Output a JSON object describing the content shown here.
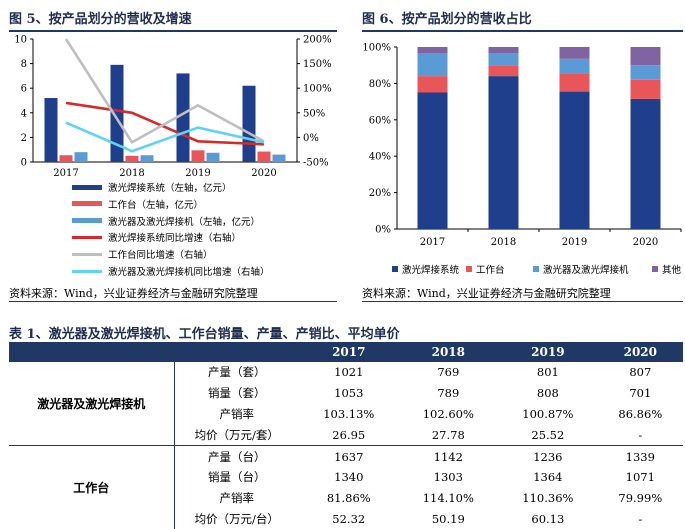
{
  "fig5": {
    "title": "图 5、按产品划分的营收及增速",
    "source": "资料来源：Wind，兴业证券经济与金融研究院整理",
    "legend": [
      {
        "label": "激光焊接系统（左轴，亿元）",
        "kind": "bar",
        "color": "#1f3e8c"
      },
      {
        "label": "工作台（左轴，亿元）",
        "kind": "bar",
        "color": "#e8565a"
      },
      {
        "label": "激光器及激光焊接机（左轴，亿元）",
        "kind": "bar",
        "color": "#5b9bd5"
      },
      {
        "label": "激光焊接系统同比增速（右轴）",
        "kind": "line",
        "color": "#d62a2a"
      },
      {
        "label": "工作台同比增速（右轴）",
        "kind": "line",
        "color": "#bfbfbf"
      },
      {
        "label": "激光器及激光焊接机同比增速（右轴）",
        "kind": "line",
        "color": "#5fd3f3"
      }
    ]
  },
  "fig6": {
    "title": "图 6、按产品划分的营收占比",
    "source": "资料来源：Wind，兴业证券经济与金融研究院整理",
    "legend": [
      {
        "label": "激光焊接系统",
        "color": "#1f3e8c"
      },
      {
        "label": "工作台",
        "color": "#e8565a"
      },
      {
        "label": "激光器及激光焊接机",
        "color": "#5b9bd5"
      },
      {
        "label": "其他",
        "color": "#8064a2"
      }
    ]
  },
  "chart_data": [
    {
      "type": "bar",
      "title": "图 5、按产品划分的营收及增速",
      "categories": [
        "2017",
        "2018",
        "2019",
        "2020"
      ],
      "ylim": [
        0,
        10
      ],
      "yticks": [
        "0",
        "2",
        "4",
        "6",
        "8",
        "10"
      ],
      "y2lim": [
        -50,
        200
      ],
      "y2ticks": [
        "-50%",
        "0%",
        "50%",
        "100%",
        "150%",
        "200%"
      ],
      "series": [
        {
          "name": "激光焊接系统（左轴，亿元）",
          "kind": "bar",
          "axis": "left",
          "color": "#1f3e8c",
          "values": [
            5.2,
            7.9,
            7.2,
            6.2
          ]
        },
        {
          "name": "工作台（左轴，亿元）",
          "kind": "bar",
          "axis": "left",
          "color": "#e8565a",
          "values": [
            0.55,
            0.5,
            0.95,
            0.85
          ]
        },
        {
          "name": "激光器及激光焊接机（左轴，亿元）",
          "kind": "bar",
          "axis": "left",
          "color": "#5b9bd5",
          "values": [
            0.8,
            0.55,
            0.75,
            0.6
          ]
        },
        {
          "name": "激光焊接系统同比增速（右轴）",
          "kind": "line",
          "axis": "right",
          "color": "#d62a2a",
          "values": [
            70,
            50,
            -8,
            -14
          ]
        },
        {
          "name": "工作台同比增速（右轴）",
          "kind": "line",
          "axis": "right",
          "color": "#bfbfbf",
          "values": [
            200,
            -10,
            65,
            -8
          ]
        },
        {
          "name": "激光器及激光焊接机同比增速（右轴）",
          "kind": "line",
          "axis": "right",
          "color": "#5fd3f3",
          "values": [
            30,
            -28,
            20,
            -10
          ]
        }
      ]
    },
    {
      "type": "bar",
      "stacked": true,
      "title": "图 6、按产品划分的营收占比",
      "categories": [
        "2017",
        "2018",
        "2019",
        "2020"
      ],
      "ylim": [
        0,
        100
      ],
      "yticks": [
        "0%",
        "20%",
        "40%",
        "60%",
        "80%",
        "100%"
      ],
      "series": [
        {
          "name": "激光焊接系统",
          "color": "#1f3e8c",
          "values": [
            75,
            84,
            75.5,
            71.5
          ]
        },
        {
          "name": "工作台",
          "color": "#e8565a",
          "values": [
            9,
            6,
            10,
            10.5
          ]
        },
        {
          "name": "激光器及激光焊接机",
          "color": "#5b9bd5",
          "values": [
            12.5,
            6.5,
            8,
            8
          ]
        },
        {
          "name": "其他",
          "color": "#8064a2",
          "values": [
            3.5,
            3.5,
            6.5,
            10
          ]
        }
      ]
    }
  ],
  "table": {
    "title": "表 1、激光器及激光焊接机、工作台销量、产量、产销比、平均单价",
    "headers": [
      "",
      "",
      "2017",
      "2018",
      "2019",
      "2020"
    ],
    "groups": [
      {
        "name": "激光器及激光焊接机",
        "rows": [
          {
            "label": "产量（套）",
            "values": [
              "1021",
              "769",
              "801",
              "807"
            ]
          },
          {
            "label": "销量（套）",
            "values": [
              "1053",
              "789",
              "808",
              "701"
            ]
          },
          {
            "label": "产销率",
            "values": [
              "103.13%",
              "102.60%",
              "100.87%",
              "86.86%"
            ]
          },
          {
            "label": "均价（万元/套）",
            "values": [
              "26.95",
              "27.78",
              "25.52",
              "-"
            ]
          }
        ]
      },
      {
        "name": "工作台",
        "rows": [
          {
            "label": "产量（台）",
            "values": [
              "1637",
              "1142",
              "1236",
              "1339"
            ]
          },
          {
            "label": "销量（台）",
            "values": [
              "1340",
              "1303",
              "1364",
              "1071"
            ]
          },
          {
            "label": "产销率",
            "values": [
              "81.86%",
              "114.10%",
              "110.36%",
              "79.99%"
            ]
          },
          {
            "label": "均价（万元/台）",
            "values": [
              "52.32",
              "50.19",
              "60.13",
              "-"
            ]
          }
        ]
      }
    ]
  }
}
